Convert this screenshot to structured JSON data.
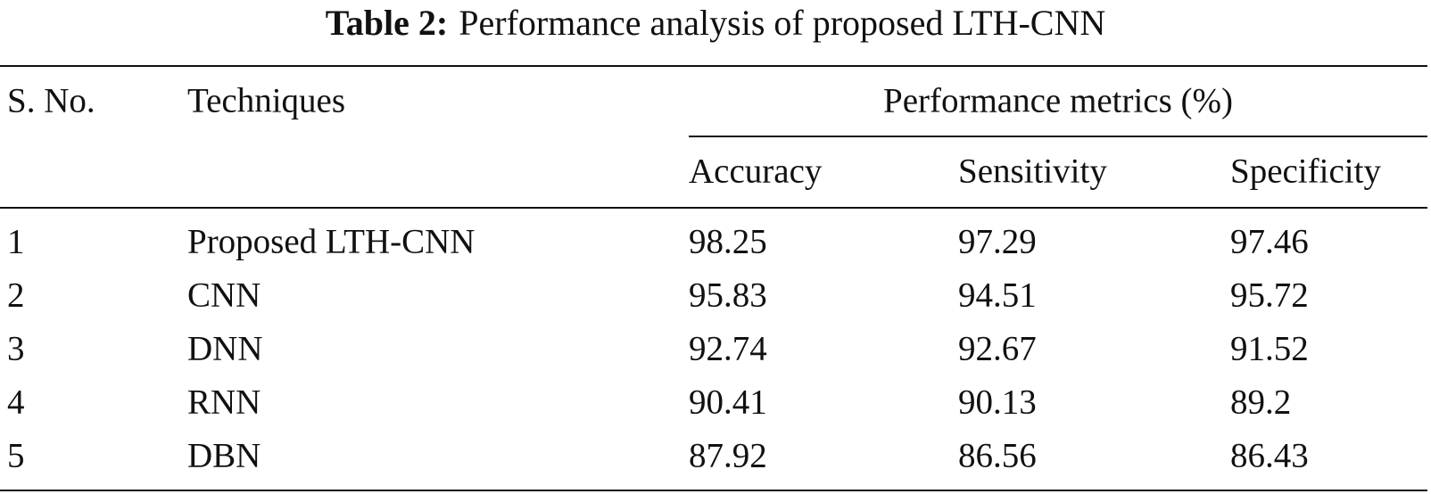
{
  "caption": {
    "label": "Table 2:",
    "text": "Performance analysis of proposed LTH-CNN"
  },
  "table": {
    "header": [
      "S. No.",
      "Techniques",
      "Performance metrics (%)"
    ],
    "subheader": [
      "Accuracy",
      "Sensitivity",
      "Specificity"
    ],
    "rows": [
      [
        1,
        "Proposed LTH-CNN",
        98.25,
        97.29,
        97.46
      ],
      [
        2,
        "CNN",
        95.83,
        94.51,
        95.72
      ],
      [
        3,
        "DNN",
        92.74,
        92.67,
        91.52
      ],
      [
        4,
        "RNN",
        90.41,
        90.13,
        89.2
      ],
      [
        5,
        "DBN",
        87.92,
        86.56,
        86.43
      ]
    ]
  }
}
